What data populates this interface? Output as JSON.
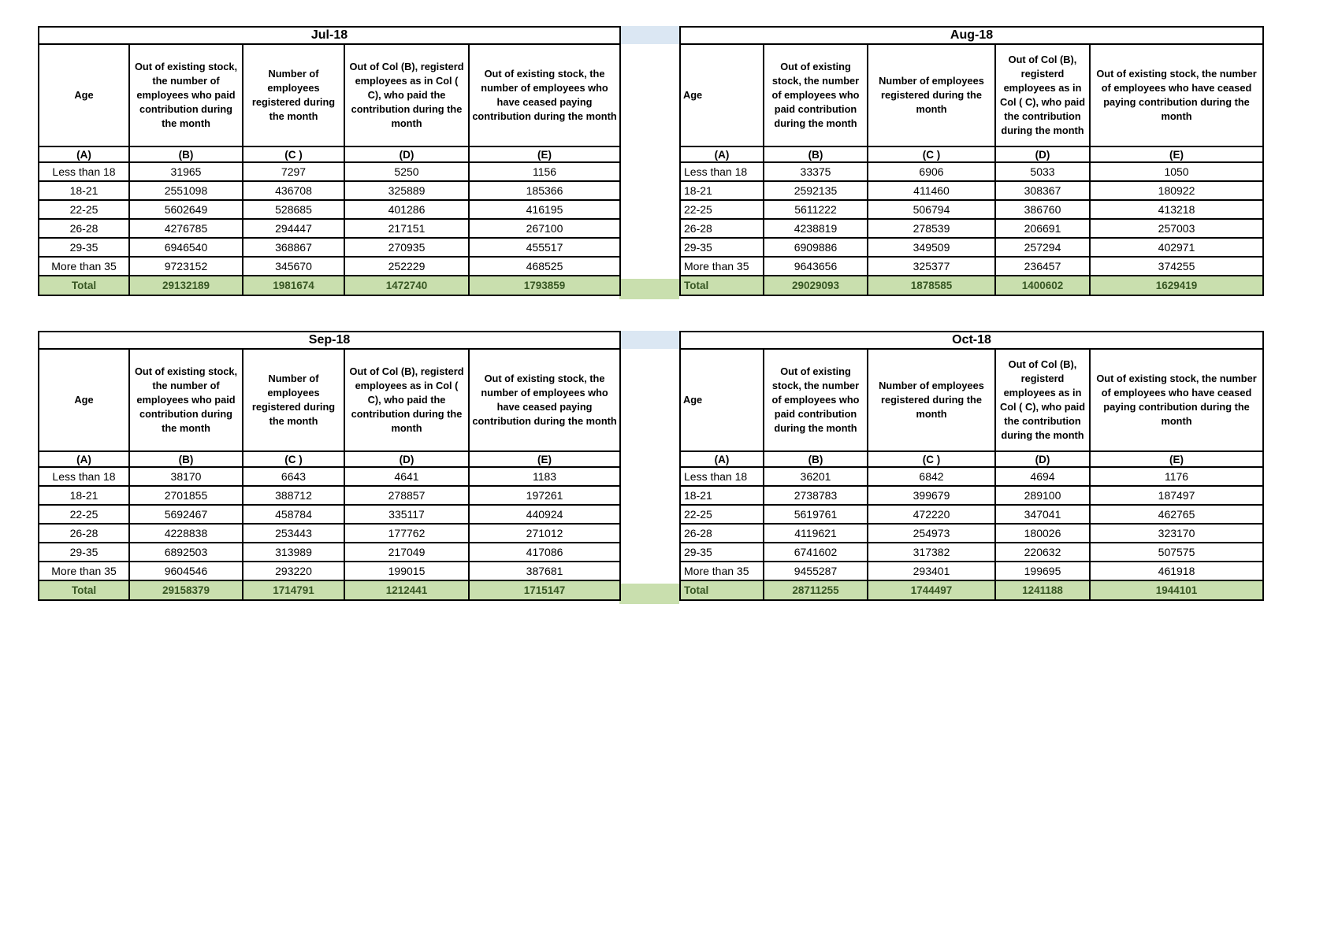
{
  "colors": {
    "title_fill": "#DBE7F3",
    "total_fill": "#C9DFAE",
    "total_text": "#375623",
    "border": "#000000",
    "background": "#FFFFFF"
  },
  "columns": {
    "headers": {
      "a": "Age",
      "b": "Out of existing stock, the number of employees who paid contribution during the month",
      "c": "Number of employees registered during the month",
      "d": "Out of Col (B), registerd employees as in Col ( C), who paid the contribution during the month",
      "e": "Out of existing stock, the number of  employees  who have ceased paying contribution during the month"
    },
    "letters": [
      "(A)",
      "(B)",
      "(C )",
      "(D)",
      "(E)"
    ]
  },
  "months": [
    {
      "title": "Jul-18",
      "rows": [
        [
          "Less than 18",
          "31965",
          "7297",
          "5250",
          "1156"
        ],
        [
          "18-21",
          "2551098",
          "436708",
          "325889",
          "185366"
        ],
        [
          "22-25",
          "5602649",
          "528685",
          "401286",
          "416195"
        ],
        [
          "26-28",
          "4276785",
          "294447",
          "217151",
          "267100"
        ],
        [
          "29-35",
          "6946540",
          "368867",
          "270935",
          "455517"
        ],
        [
          "More than 35",
          "9723152",
          "345670",
          "252229",
          "468525"
        ]
      ],
      "total": [
        "Total",
        "29132189",
        "1981674",
        "1472740",
        "1793859"
      ]
    },
    {
      "title": "Aug-18",
      "rows": [
        [
          "Less than 18",
          "33375",
          "6906",
          "5033",
          "1050"
        ],
        [
          "18-21",
          "2592135",
          "411460",
          "308367",
          "180922"
        ],
        [
          "22-25",
          "5611222",
          "506794",
          "386760",
          "413218"
        ],
        [
          "26-28",
          "4238819",
          "278539",
          "206691",
          "257003"
        ],
        [
          "29-35",
          "6909886",
          "349509",
          "257294",
          "402971"
        ],
        [
          "More than 35",
          "9643656",
          "325377",
          "236457",
          "374255"
        ]
      ],
      "total": [
        "Total",
        "29029093",
        "1878585",
        "1400602",
        "1629419"
      ]
    },
    {
      "title": "Sep-18",
      "rows": [
        [
          "Less than 18",
          "38170",
          "6643",
          "4641",
          "1183"
        ],
        [
          "18-21",
          "2701855",
          "388712",
          "278857",
          "197261"
        ],
        [
          "22-25",
          "5692467",
          "458784",
          "335117",
          "440924"
        ],
        [
          "26-28",
          "4228838",
          "253443",
          "177762",
          "271012"
        ],
        [
          "29-35",
          "6892503",
          "313989",
          "217049",
          "417086"
        ],
        [
          "More than 35",
          "9604546",
          "293220",
          "199015",
          "387681"
        ]
      ],
      "total": [
        "Total",
        "29158379",
        "1714791",
        "1212441",
        "1715147"
      ]
    },
    {
      "title": "Oct-18",
      "rows": [
        [
          "Less than 18",
          "36201",
          "6842",
          "4694",
          "1176"
        ],
        [
          "18-21",
          "2738783",
          "399679",
          "289100",
          "187497"
        ],
        [
          "22-25",
          "5619761",
          "472220",
          "347041",
          "462765"
        ],
        [
          "26-28",
          "4119621",
          "254973",
          "180026",
          "323170"
        ],
        [
          "29-35",
          "6741602",
          "317382",
          "220632",
          "507575"
        ],
        [
          "More than 35",
          "9455287",
          "293401",
          "199695",
          "461918"
        ]
      ],
      "total": [
        "Total",
        "28711255",
        "1744497",
        "1241188",
        "1944101"
      ]
    }
  ]
}
